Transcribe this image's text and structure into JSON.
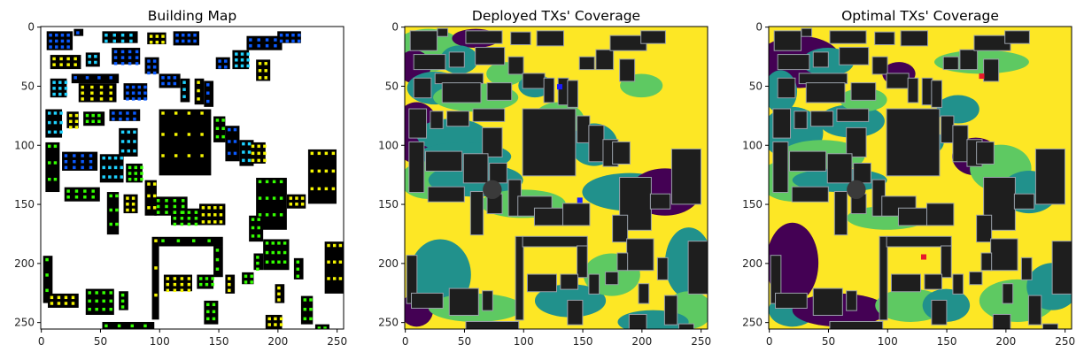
{
  "figure": {
    "panels": [
      {
        "title": "Building Map"
      },
      {
        "title": "Deployed TXs' Coverage"
      },
      {
        "title": "Optimal TXs' Coverage"
      }
    ]
  },
  "chart_data": [
    {
      "type": "heatmap",
      "title": "Building Map",
      "xlabel": "",
      "ylabel": "",
      "xlim": [
        0,
        256
      ],
      "ylim": [
        256,
        0
      ],
      "x_ticks": [
        0,
        50,
        100,
        150,
        200,
        250
      ],
      "y_ticks": [
        0,
        50,
        100,
        150,
        200,
        250
      ],
      "colors": {
        "background": "#ffffff",
        "building": "#000000",
        "candidate_green": "#33ff00",
        "candidate_yellow": "#f5f500",
        "candidate_cyan": "#1ed2ff",
        "candidate_blue": "#0a5aff"
      }
    },
    {
      "type": "heatmap",
      "title": "Deployed TXs' Coverage",
      "xlabel": "",
      "ylabel": "",
      "xlim": [
        0,
        256
      ],
      "ylim": [
        256,
        0
      ],
      "x_ticks": [
        0,
        50,
        100,
        150,
        200,
        250
      ],
      "y_ticks": [
        0,
        50,
        100,
        150,
        200,
        250
      ],
      "transmitters": [
        {
          "x": 131,
          "y": 51
        },
        {
          "x": 148,
          "y": 147
        }
      ],
      "tx_color": "#1a1aff",
      "colors": {
        "covered": "#fde725",
        "level3": "#5ec962",
        "level2": "#21918c",
        "level1": "#440154",
        "building": "#1e1e1e"
      }
    },
    {
      "type": "heatmap",
      "title": "Optimal TXs' Coverage",
      "xlabel": "",
      "ylabel": "",
      "xlim": [
        0,
        256
      ],
      "ylim": [
        256,
        0
      ],
      "x_ticks": [
        0,
        50,
        100,
        150,
        200,
        250
      ],
      "y_ticks": [
        0,
        50,
        100,
        150,
        200,
        250
      ],
      "transmitters": [
        {
          "x": 180,
          "y": 42
        },
        {
          "x": 131,
          "y": 195
        }
      ],
      "tx_color": "#e8192c",
      "colors": {
        "covered": "#fde725",
        "level3": "#5ec962",
        "level2": "#21918c",
        "level1": "#440154",
        "building": "#1e1e1e"
      }
    }
  ]
}
